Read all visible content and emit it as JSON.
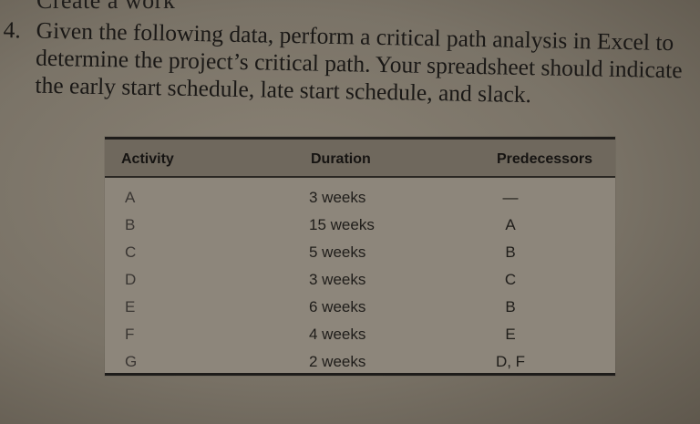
{
  "problem": {
    "number": "4.",
    "text": "Given the following data, perform a critical path analysis in Excel to determine the project’s critical path. Your spreadsheet should indicate the early start schedule, late start schedule, and slack."
  },
  "table": {
    "headers": {
      "activity": "Activity",
      "duration": "Duration",
      "predecessors": "Predecessors"
    },
    "rows": [
      {
        "activity": "A",
        "duration": "3 weeks",
        "predecessors": "—"
      },
      {
        "activity": "B",
        "duration": "15 weeks",
        "predecessors": "A"
      },
      {
        "activity": "C",
        "duration": "5 weeks",
        "predecessors": "B"
      },
      {
        "activity": "D",
        "duration": "3 weeks",
        "predecessors": "C"
      },
      {
        "activity": "E",
        "duration": "6 weeks",
        "predecessors": "B"
      },
      {
        "activity": "F",
        "duration": "4 weeks",
        "predecessors": "E"
      },
      {
        "activity": "G",
        "duration": "2 weeks",
        "predecessors": "D, F"
      }
    ]
  }
}
